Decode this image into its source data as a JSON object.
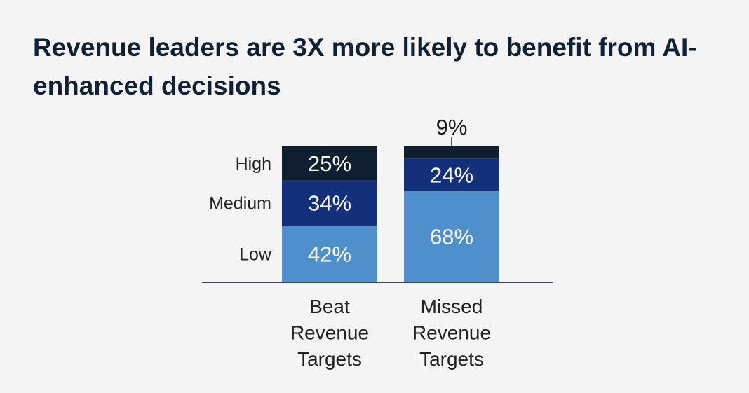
{
  "chart_data": {
    "type": "bar",
    "stacked": true,
    "title": "Revenue leaders are 3X more likely to benefit from AI-enhanced decisions",
    "categories": [
      "Beat Revenue Targets",
      "Missed Revenue Targets"
    ],
    "category_lines": [
      [
        "Beat",
        "Revenue",
        "Targets"
      ],
      [
        "Missed",
        "Revenue",
        "Targets"
      ]
    ],
    "series": [
      {
        "name": "Low",
        "values": [
          42,
          68
        ],
        "labels": [
          "42%",
          "68%"
        ],
        "color": "#4f8fcc"
      },
      {
        "name": "Medium",
        "values": [
          34,
          24
        ],
        "labels": [
          "34%",
          "24%"
        ],
        "color": "#14307a"
      },
      {
        "name": "High",
        "values": [
          25,
          9
        ],
        "labels": [
          "25%",
          "9%"
        ],
        "color": "#0f1e30"
      }
    ],
    "unit": "%",
    "grid": false,
    "legend": "left (row labels beside first bar)"
  }
}
